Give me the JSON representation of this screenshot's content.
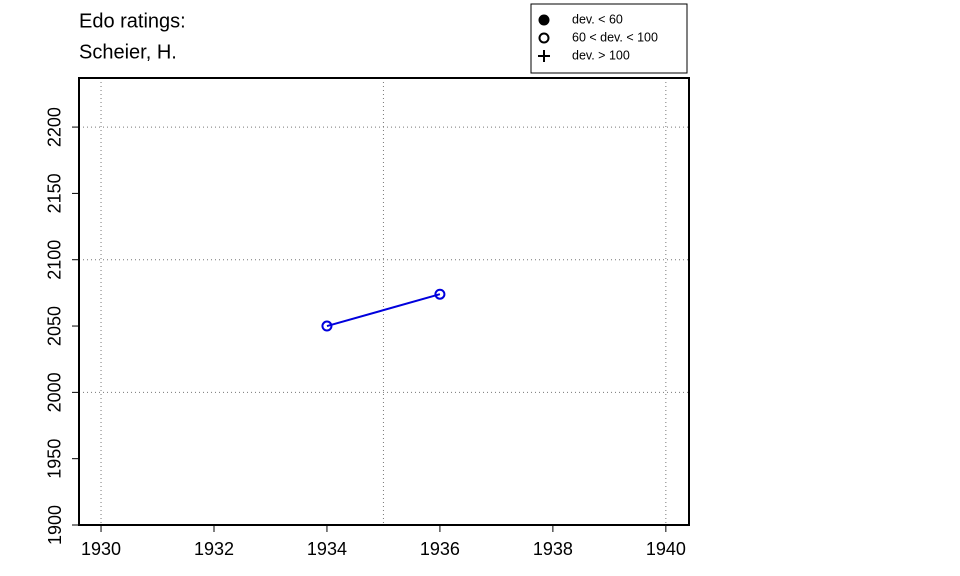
{
  "chart_data": {
    "type": "line",
    "title": [
      "Edo ratings:",
      "Scheier, H."
    ],
    "x": [
      1934,
      1936
    ],
    "series": [
      {
        "color": "#0000dd",
        "values": [
          2050,
          2074
        ],
        "markers": [
          "open",
          "open"
        ]
      }
    ],
    "xlim": [
      1929.61,
      1940.41
    ],
    "ylim": [
      1900,
      2237
    ],
    "xticks": [
      1930,
      1932,
      1934,
      1936,
      1938,
      1940
    ],
    "yticks": [
      1900,
      1950,
      2000,
      2050,
      2100,
      2150,
      2200
    ],
    "grid_x": [
      1930,
      1935,
      1940
    ],
    "grid_y": [
      2000,
      2100,
      2200
    ],
    "legend": {
      "position": "top-right",
      "items": [
        {
          "symbol": "filled",
          "label": "dev. < 60"
        },
        {
          "symbol": "open",
          "label": "60 < dev. < 100"
        },
        {
          "symbol": "plus",
          "label": "dev. > 100"
        }
      ]
    }
  }
}
